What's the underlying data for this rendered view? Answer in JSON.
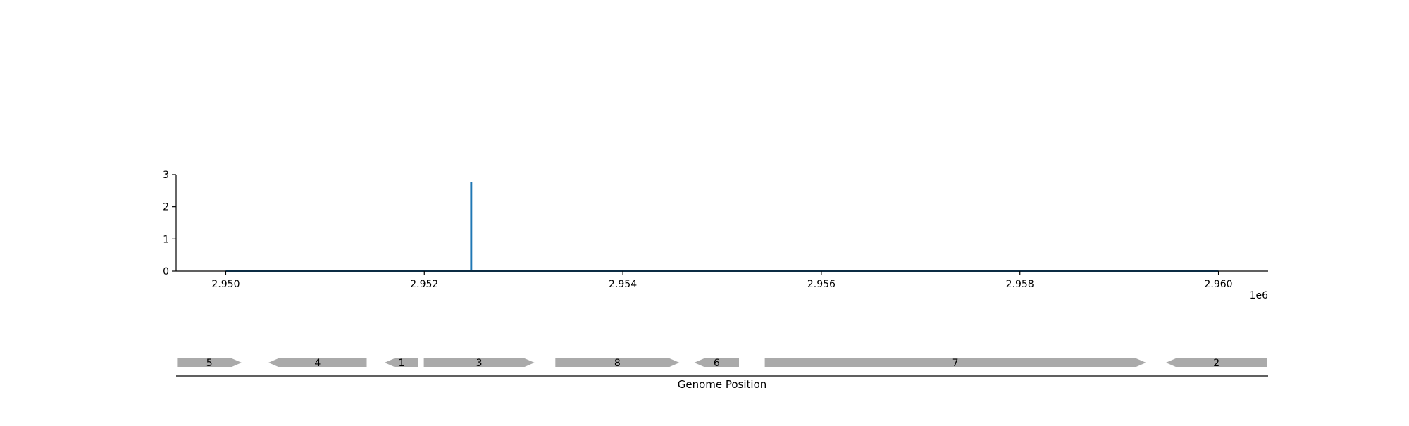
{
  "chart_data": {
    "type": "line",
    "x_offset_label": "1e6",
    "xlim": [
      2949500,
      2960500
    ],
    "ylim": [
      0,
      3
    ],
    "y_ticks": [
      0,
      1,
      2,
      3
    ],
    "x_ticks": [
      2950000,
      2952000,
      2954000,
      2956000,
      2958000,
      2960000
    ],
    "x_tick_labels": [
      "2.950",
      "2.952",
      "2.954",
      "2.956",
      "2.958",
      "2.960"
    ],
    "series": [
      {
        "color": "#1f77b4",
        "points": [
          [
            2950000,
            0
          ],
          [
            2952470,
            0
          ],
          [
            2952470,
            2.75
          ],
          [
            2952475,
            2.75
          ],
          [
            2952475,
            0
          ],
          [
            2960000,
            0
          ]
        ]
      }
    ],
    "genes": [
      {
        "label": "5",
        "start": 2949510,
        "end": 2950160,
        "strand": "+"
      },
      {
        "label": "4",
        "start": 2950430,
        "end": 2951420,
        "strand": "-"
      },
      {
        "label": "1",
        "start": 2951600,
        "end": 2951940,
        "strand": "-"
      },
      {
        "label": "3",
        "start": 2951995,
        "end": 2953110,
        "strand": "+"
      },
      {
        "label": "8",
        "start": 2953320,
        "end": 2954570,
        "strand": "+"
      },
      {
        "label": "6",
        "start": 2954720,
        "end": 2955170,
        "strand": "-"
      },
      {
        "label": "7",
        "start": 2955430,
        "end": 2959270,
        "strand": "+"
      },
      {
        "label": "2",
        "start": 2959470,
        "end": 2960490,
        "strand": "-"
      }
    ],
    "gene_color": "#aaaaaa",
    "xlabel": "Genome Position",
    "grid": false
  }
}
